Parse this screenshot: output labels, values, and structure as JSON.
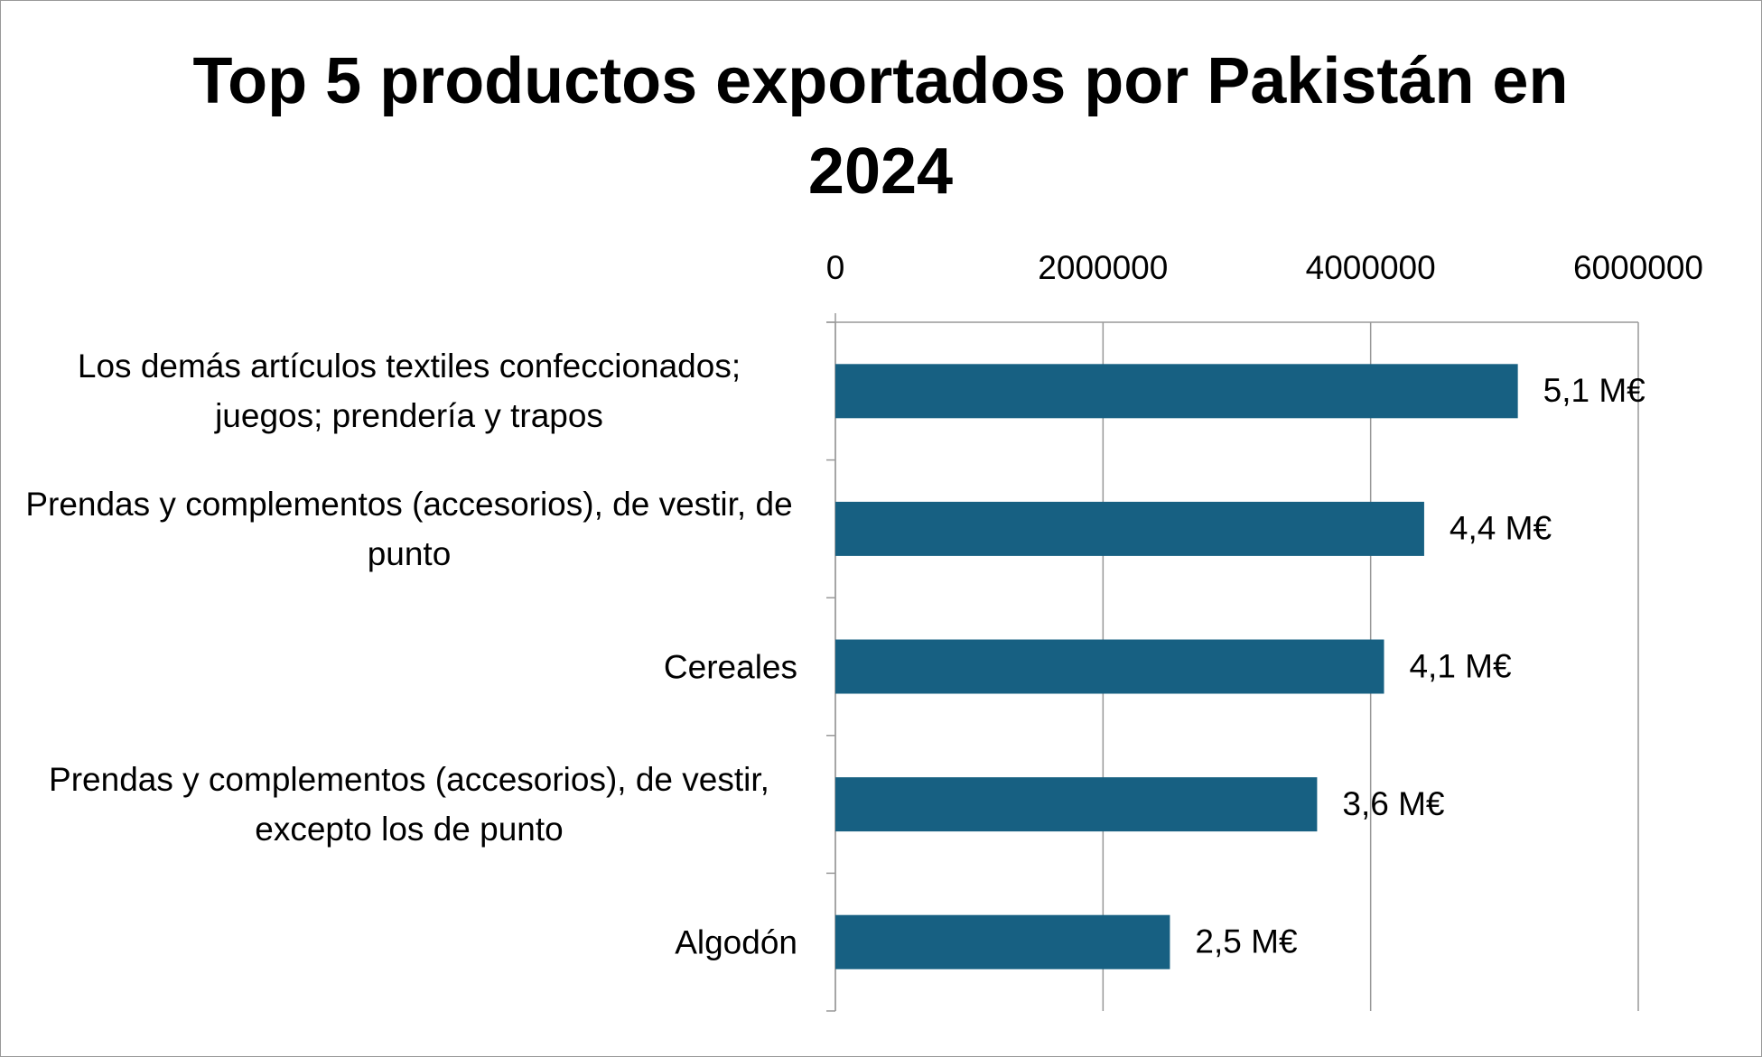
{
  "chart_data": {
    "type": "bar",
    "orientation": "horizontal",
    "title": "Top 5 productos exportados por Pakistán en 2024",
    "categories": [
      "Los demás artículos textiles confeccionados; juegos; prendería y trapos",
      "Prendas y complementos (accesorios), de vestir, de punto",
      "Cereales",
      "Prendas y complementos (accesorios), de vestir, excepto los de punto",
      "Algodón"
    ],
    "values": [
      5100000,
      4400000,
      4100000,
      3600000,
      2500000
    ],
    "value_labels": [
      "5,1 M€",
      "4,4 M€",
      "4,1 M€",
      "3,6 M€",
      "2,5 M€"
    ],
    "color": "#176082",
    "xlim": [
      0,
      6000000
    ],
    "xticks": [
      0,
      2000000,
      4000000,
      6000000
    ],
    "grid": true
  }
}
